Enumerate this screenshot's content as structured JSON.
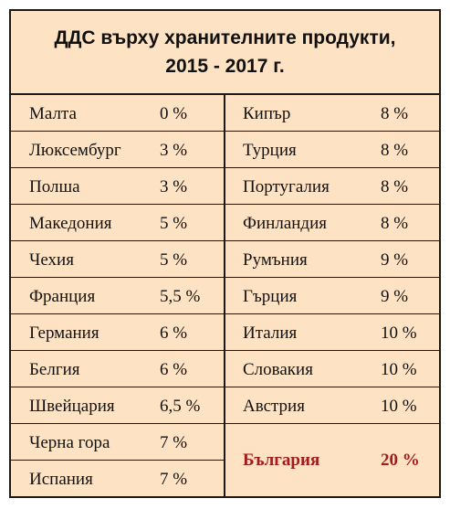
{
  "title": {
    "line1": "ДДС върху хранителните продукти,",
    "line2": "2015 - 2017 г."
  },
  "left_rows": [
    {
      "country": "Малта",
      "rate": "0 %"
    },
    {
      "country": "Люксембург",
      "rate": "3 %"
    },
    {
      "country": "Полша",
      "rate": "3 %"
    },
    {
      "country": "Македония",
      "rate": "5 %"
    },
    {
      "country": "Чехия",
      "rate": "5 %"
    },
    {
      "country": "Франция",
      "rate": "5,5 %"
    },
    {
      "country": "Германия",
      "rate": "6 %"
    },
    {
      "country": "Белгия",
      "rate": "6 %"
    },
    {
      "country": "Швейцария",
      "rate": "6,5 %"
    },
    {
      "country": "Черна гора",
      "rate": "7 %"
    },
    {
      "country": "Испания",
      "rate": "7 %"
    }
  ],
  "right_rows": [
    {
      "country": "Кипър",
      "rate": "8 %"
    },
    {
      "country": "Турция",
      "rate": "8 %"
    },
    {
      "country": "Португалия",
      "rate": "8 %"
    },
    {
      "country": "Финландия",
      "rate": "8 %"
    },
    {
      "country": "Румъния",
      "rate": "9 %"
    },
    {
      "country": "Гърция",
      "rate": "9 %"
    },
    {
      "country": "Италия",
      "rate": "10 %"
    },
    {
      "country": "Словакия",
      "rate": "10 %"
    },
    {
      "country": "Австрия",
      "rate": "10 %"
    }
  ],
  "highlight": {
    "country": "България",
    "rate": "20 %"
  },
  "colors": {
    "background": "#fde3c4",
    "highlight_text": "#a31b1b",
    "border": "#1a1a1a"
  }
}
